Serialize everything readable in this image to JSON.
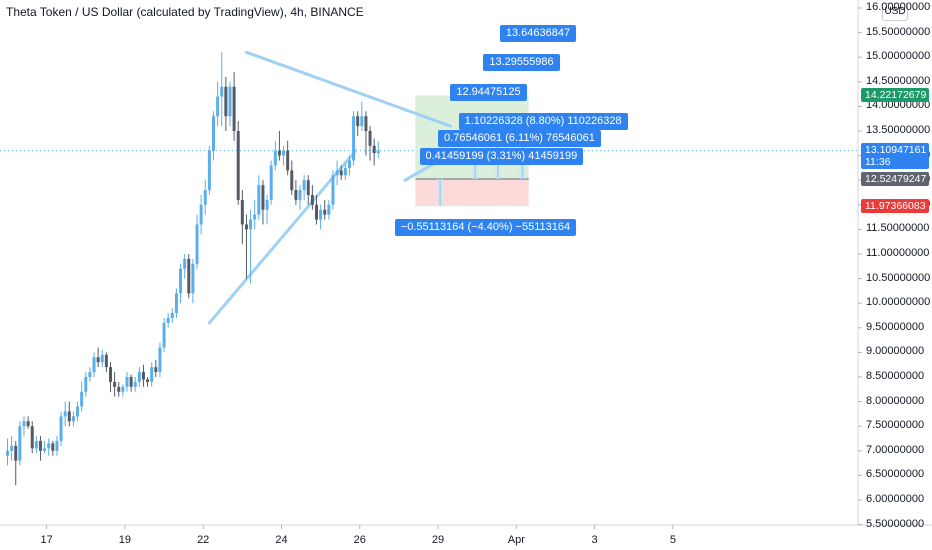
{
  "title": "Theta Token / US Dollar (calculated by TradingView), 4h, BINANCE",
  "currency_button": "USD",
  "colors": {
    "up": "#5aaeeb",
    "down": "#555b66",
    "line": "#9fd1f5",
    "accent": "#2f83f0",
    "profit": "#d6ecd6",
    "loss": "#fbd4d4"
  },
  "chart_data": {
    "type": "candlestick",
    "ylim": [
      5.5,
      16.0
    ],
    "y_ticks": [
      "16.00000000",
      "15.50000000",
      "15.00000000",
      "14.50000000",
      "14.00000000",
      "13.50000000",
      "13.00000000",
      "12.50000000",
      "12.00000000",
      "11.50000000",
      "11.00000000",
      "10.50000000",
      "10.00000000",
      "9.50000000",
      "9.00000000",
      "8.50000000",
      "8.00000000",
      "7.50000000",
      "7.00000000",
      "6.50000000",
      "6.00000000",
      "5.50000000"
    ],
    "y_tick_values": [
      16.0,
      15.5,
      15.0,
      14.5,
      14.0,
      13.5,
      13.0,
      12.5,
      12.0,
      11.5,
      11.0,
      10.5,
      10.0,
      9.5,
      9.0,
      8.5,
      8.0,
      7.5,
      7.0,
      6.5,
      6.0,
      5.5
    ],
    "x_ticks": [
      "17",
      "19",
      "22",
      "24",
      "26",
      "29",
      "Apr",
      "3",
      "5"
    ],
    "x_tick_bars": [
      9.5,
      28.5,
      47.5,
      66.5,
      85.5,
      104.5,
      123.5,
      142.5,
      161.5
    ],
    "candles": [
      {
        "o": 6.9,
        "h": 7.25,
        "l": 6.7,
        "c": 7.0
      },
      {
        "o": 7.0,
        "h": 7.3,
        "l": 6.8,
        "c": 7.1
      },
      {
        "o": 7.1,
        "h": 7.2,
        "l": 6.3,
        "c": 6.8
      },
      {
        "o": 6.8,
        "h": 7.6,
        "l": 6.7,
        "c": 7.5
      },
      {
        "o": 7.5,
        "h": 7.7,
        "l": 7.3,
        "c": 7.6
      },
      {
        "o": 7.6,
        "h": 7.7,
        "l": 7.45,
        "c": 7.5
      },
      {
        "o": 7.5,
        "h": 7.6,
        "l": 6.95,
        "c": 7.05
      },
      {
        "o": 7.05,
        "h": 7.3,
        "l": 6.95,
        "c": 7.2
      },
      {
        "o": 7.2,
        "h": 7.3,
        "l": 6.8,
        "c": 7.0
      },
      {
        "o": 7.0,
        "h": 7.2,
        "l": 6.95,
        "c": 7.05
      },
      {
        "o": 7.05,
        "h": 7.25,
        "l": 6.9,
        "c": 7.15
      },
      {
        "o": 7.15,
        "h": 7.2,
        "l": 6.9,
        "c": 7.0
      },
      {
        "o": 7.0,
        "h": 7.3,
        "l": 6.9,
        "c": 7.2
      },
      {
        "o": 7.2,
        "h": 7.8,
        "l": 7.1,
        "c": 7.7
      },
      {
        "o": 7.7,
        "h": 8.0,
        "l": 7.5,
        "c": 7.8
      },
      {
        "o": 7.8,
        "h": 8.0,
        "l": 7.5,
        "c": 7.6
      },
      {
        "o": 7.6,
        "h": 7.8,
        "l": 7.5,
        "c": 7.7
      },
      {
        "o": 7.7,
        "h": 8.0,
        "l": 7.6,
        "c": 7.9
      },
      {
        "o": 7.9,
        "h": 8.4,
        "l": 7.8,
        "c": 8.2
      },
      {
        "o": 8.2,
        "h": 8.6,
        "l": 8.1,
        "c": 8.5
      },
      {
        "o": 8.5,
        "h": 8.7,
        "l": 8.4,
        "c": 8.6
      },
      {
        "o": 8.6,
        "h": 9.0,
        "l": 8.5,
        "c": 8.9
      },
      {
        "o": 8.9,
        "h": 9.1,
        "l": 8.7,
        "c": 8.8
      },
      {
        "o": 8.8,
        "h": 9.05,
        "l": 8.7,
        "c": 8.95
      },
      {
        "o": 8.95,
        "h": 9.0,
        "l": 8.6,
        "c": 8.7
      },
      {
        "o": 8.7,
        "h": 8.8,
        "l": 8.2,
        "c": 8.4
      },
      {
        "o": 8.4,
        "h": 8.6,
        "l": 8.1,
        "c": 8.3
      },
      {
        "o": 8.3,
        "h": 8.4,
        "l": 8.1,
        "c": 8.2
      },
      {
        "o": 8.2,
        "h": 8.35,
        "l": 8.1,
        "c": 8.3
      },
      {
        "o": 8.3,
        "h": 8.6,
        "l": 8.2,
        "c": 8.5
      },
      {
        "o": 8.5,
        "h": 8.55,
        "l": 8.2,
        "c": 8.3
      },
      {
        "o": 8.3,
        "h": 8.5,
        "l": 8.2,
        "c": 8.4
      },
      {
        "o": 8.4,
        "h": 8.7,
        "l": 8.3,
        "c": 8.6
      },
      {
        "o": 8.6,
        "h": 8.75,
        "l": 8.3,
        "c": 8.45
      },
      {
        "o": 8.45,
        "h": 8.5,
        "l": 8.3,
        "c": 8.4
      },
      {
        "o": 8.4,
        "h": 8.8,
        "l": 8.3,
        "c": 8.7
      },
      {
        "o": 8.7,
        "h": 8.85,
        "l": 8.5,
        "c": 8.6
      },
      {
        "o": 8.6,
        "h": 9.2,
        "l": 8.5,
        "c": 9.1
      },
      {
        "o": 9.1,
        "h": 9.7,
        "l": 9.0,
        "c": 9.6
      },
      {
        "o": 9.6,
        "h": 9.8,
        "l": 9.5,
        "c": 9.7
      },
      {
        "o": 9.7,
        "h": 9.9,
        "l": 9.6,
        "c": 9.8
      },
      {
        "o": 9.8,
        "h": 10.3,
        "l": 9.7,
        "c": 10.2
      },
      {
        "o": 10.2,
        "h": 10.8,
        "l": 10.0,
        "c": 10.7
      },
      {
        "o": 10.7,
        "h": 11.0,
        "l": 10.5,
        "c": 10.9
      },
      {
        "o": 10.9,
        "h": 11.0,
        "l": 10.1,
        "c": 10.2
      },
      {
        "o": 10.2,
        "h": 10.9,
        "l": 10.0,
        "c": 10.8
      },
      {
        "o": 10.8,
        "h": 11.8,
        "l": 10.7,
        "c": 11.6
      },
      {
        "o": 11.6,
        "h": 12.2,
        "l": 11.4,
        "c": 12.0
      },
      {
        "o": 12.0,
        "h": 12.5,
        "l": 11.8,
        "c": 12.3
      },
      {
        "o": 12.3,
        "h": 13.2,
        "l": 12.2,
        "c": 13.1
      },
      {
        "o": 13.1,
        "h": 13.9,
        "l": 12.9,
        "c": 13.8
      },
      {
        "o": 13.8,
        "h": 14.5,
        "l": 13.6,
        "c": 14.2
      },
      {
        "o": 14.2,
        "h": 15.1,
        "l": 13.6,
        "c": 14.4
      },
      {
        "o": 14.4,
        "h": 14.6,
        "l": 13.5,
        "c": 13.8
      },
      {
        "o": 13.8,
        "h": 14.5,
        "l": 13.6,
        "c": 14.4
      },
      {
        "o": 14.4,
        "h": 14.7,
        "l": 13.3,
        "c": 13.5
      },
      {
        "o": 13.5,
        "h": 13.7,
        "l": 12.0,
        "c": 12.1
      },
      {
        "o": 12.1,
        "h": 12.3,
        "l": 11.2,
        "c": 11.6
      },
      {
        "o": 11.6,
        "h": 11.8,
        "l": 10.5,
        "c": 11.5
      },
      {
        "o": 11.5,
        "h": 11.9,
        "l": 10.4,
        "c": 11.7
      },
      {
        "o": 11.7,
        "h": 12.1,
        "l": 11.5,
        "c": 11.8
      },
      {
        "o": 11.8,
        "h": 12.6,
        "l": 11.7,
        "c": 12.4
      },
      {
        "o": 12.4,
        "h": 12.5,
        "l": 11.6,
        "c": 11.9
      },
      {
        "o": 11.9,
        "h": 12.2,
        "l": 11.6,
        "c": 12.1
      },
      {
        "o": 12.1,
        "h": 12.9,
        "l": 12.0,
        "c": 12.8
      },
      {
        "o": 12.8,
        "h": 13.3,
        "l": 12.7,
        "c": 13.1
      },
      {
        "o": 13.1,
        "h": 13.5,
        "l": 12.9,
        "c": 13.0
      },
      {
        "o": 13.0,
        "h": 13.2,
        "l": 12.8,
        "c": 13.1
      },
      {
        "o": 13.1,
        "h": 13.3,
        "l": 12.6,
        "c": 12.7
      },
      {
        "o": 12.7,
        "h": 12.9,
        "l": 12.2,
        "c": 12.3
      },
      {
        "o": 12.3,
        "h": 12.5,
        "l": 12.0,
        "c": 12.1
      },
      {
        "o": 12.1,
        "h": 12.4,
        "l": 11.9,
        "c": 12.3
      },
      {
        "o": 12.3,
        "h": 12.6,
        "l": 12.1,
        "c": 12.5
      },
      {
        "o": 12.5,
        "h": 12.6,
        "l": 12.0,
        "c": 12.2
      },
      {
        "o": 12.2,
        "h": 12.4,
        "l": 11.9,
        "c": 12.0
      },
      {
        "o": 12.0,
        "h": 12.2,
        "l": 11.6,
        "c": 11.7
      },
      {
        "o": 11.7,
        "h": 12.0,
        "l": 11.5,
        "c": 11.9
      },
      {
        "o": 11.9,
        "h": 12.1,
        "l": 11.7,
        "c": 11.8
      },
      {
        "o": 11.8,
        "h": 12.1,
        "l": 11.7,
        "c": 12.0
      },
      {
        "o": 12.0,
        "h": 12.7,
        "l": 11.9,
        "c": 12.6
      },
      {
        "o": 12.6,
        "h": 12.9,
        "l": 12.4,
        "c": 12.7
      },
      {
        "o": 12.7,
        "h": 12.8,
        "l": 12.5,
        "c": 12.6
      },
      {
        "o": 12.6,
        "h": 12.85,
        "l": 12.5,
        "c": 12.75
      },
      {
        "o": 12.75,
        "h": 13.0,
        "l": 12.6,
        "c": 12.9
      },
      {
        "o": 12.9,
        "h": 13.9,
        "l": 12.8,
        "c": 13.8
      },
      {
        "o": 13.8,
        "h": 13.9,
        "l": 13.4,
        "c": 13.6
      },
      {
        "o": 13.6,
        "h": 14.1,
        "l": 13.5,
        "c": 13.8
      },
      {
        "o": 13.8,
        "h": 13.9,
        "l": 13.0,
        "c": 13.5
      },
      {
        "o": 13.5,
        "h": 13.6,
        "l": 12.9,
        "c": 13.2
      },
      {
        "o": 13.2,
        "h": 13.35,
        "l": 12.8,
        "c": 13.05
      },
      {
        "o": 13.05,
        "h": 13.3,
        "l": 12.95,
        "c": 13.1
      }
    ],
    "trendlines": [
      {
        "x1": 49,
        "y1": 9.6,
        "x2": 84.5,
        "y2": 13.1
      },
      {
        "x1": 58,
        "y1": 15.1,
        "x2": 107.5,
        "y2": 13.6
      },
      {
        "x1": 96.5,
        "y1": 12.5,
        "x2": 107,
        "y2": 13.0
      }
    ],
    "position": {
      "x1": 99,
      "x2": 126.5,
      "entry": 12.52479247,
      "target": 14.22172679,
      "stop": 11.97366083
    },
    "target_levels": [
      13.0,
      13.3,
      13.5
    ],
    "callouts": [
      {
        "text": "13.64636847",
        "x": 119.5,
        "y": 15.5
      },
      {
        "text": "13.29555986",
        "x": 115.5,
        "y": 14.9
      },
      {
        "text": "12.94475125",
        "x": 107.5,
        "y": 14.3
      },
      {
        "text": "1.10226328 (8.80%) 110226328",
        "x": 109.5,
        "y": 13.7
      },
      {
        "text": "0.76546061 (6.11%) 76546061",
        "x": 104.5,
        "y": 13.35
      },
      {
        "text": "0.41459199 (3.31%) 41459199",
        "x": 100,
        "y": 12.99
      },
      {
        "text": "−0.55113164 (−4.40%) −55113164",
        "x": 94,
        "y": 11.55
      }
    ],
    "price_tags": [
      {
        "text": "14.22172679",
        "value": 14.22172679,
        "bg": "#1e9a6a"
      },
      {
        "text": "13.10947161",
        "value": 13.10947161,
        "bg": "#2f83f0"
      },
      {
        "text": "11:36",
        "value": 12.86,
        "bg": "#2f83f0"
      },
      {
        "text": "12.52479247",
        "value": 12.52479247,
        "bg": "#5f6470"
      },
      {
        "text": "11.97366083",
        "value": 11.97366083,
        "bg": "#ea3a3a"
      }
    ]
  }
}
